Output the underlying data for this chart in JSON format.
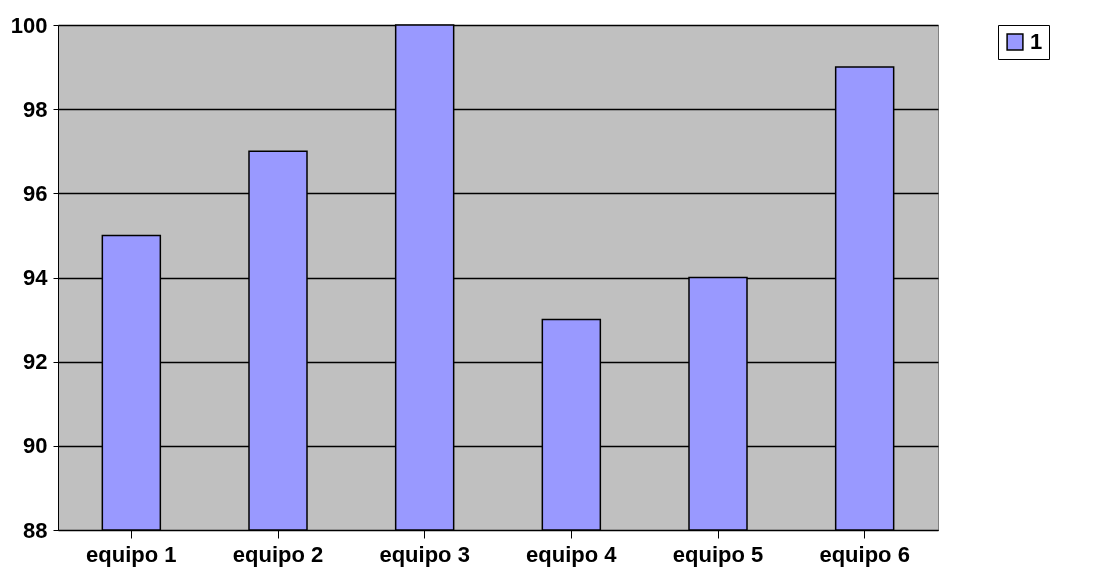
{
  "chart_data": {
    "type": "bar",
    "categories": [
      "equipo 1",
      "equipo 2",
      "equipo 3",
      "equipo 4",
      "equipo 5",
      "equipo 6"
    ],
    "series": [
      {
        "name": "1",
        "color": "#9999ff",
        "values": [
          95,
          97,
          100,
          93,
          94,
          99
        ]
      }
    ],
    "ylim": [
      88,
      100
    ],
    "yticks": [
      88,
      90,
      92,
      94,
      96,
      98,
      100
    ],
    "grid": "y",
    "legend": "right"
  }
}
